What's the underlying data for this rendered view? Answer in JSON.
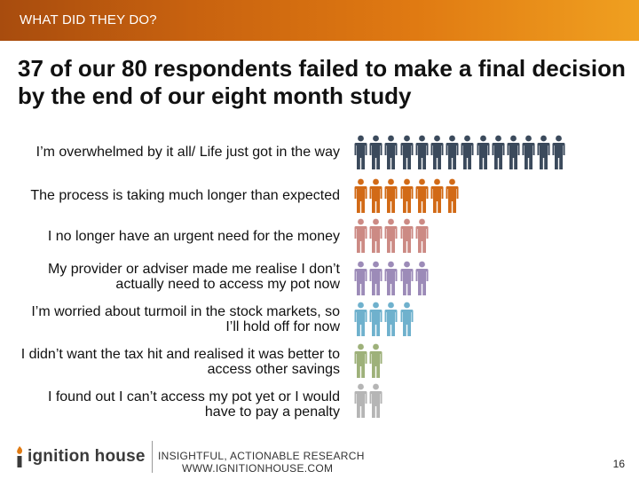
{
  "header": {
    "section_label": "WHAT DID THEY DO?",
    "accent_color": "#e07a12"
  },
  "headline": "37 of our 80 respondents failed to make a final decision by the end of our eight month study",
  "reasons": [
    {
      "label": "I’m overwhelmed by it all/ Life just got in the way",
      "count": 14,
      "color": "#3b4a5c",
      "icon": "person-icon"
    },
    {
      "label": "The process is taking much longer than expected",
      "count": 7,
      "color": "#d26a16",
      "icon": "person-icon"
    },
    {
      "label": "I no longer have an urgent need for the money",
      "count": 5,
      "color": "#cc8a84",
      "icon": "person-icon"
    },
    {
      "label": "My provider or adviser made me realise I don’t actually need to access my pot now",
      "count": 5,
      "color": "#9c8bb8",
      "icon": "person-icon"
    },
    {
      "label": "I’m worried about turmoil in the stock markets, so I’ll hold off for now",
      "count": 4,
      "color": "#6fb1cd",
      "icon": "person-icon"
    },
    {
      "label": "I didn’t want the tax hit and realised it was better to access other savings",
      "count": 2,
      "color": "#9eb17a",
      "icon": "person-icon"
    },
    {
      "label": "I found out I can’t access my pot yet or I would have to pay a penalty",
      "count": 2,
      "color": "#b5b5b5",
      "icon": "person-icon"
    }
  ],
  "footer": {
    "logo_text": "ignition house",
    "logo_icon": "flame-i-icon",
    "tagline": "INSIGHTFUL, ACTIONABLE RESEARCH",
    "website": "WWW.IGNITIONHOUSE.COM",
    "page_number": "16"
  }
}
